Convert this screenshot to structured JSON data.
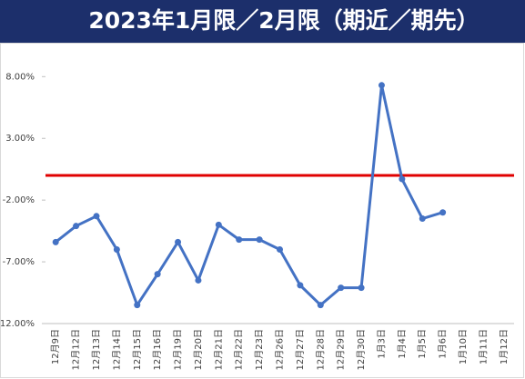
{
  "chart_data": {
    "type": "line",
    "title": "2023年1月限／2月限（期近／期先）",
    "categories": [
      "12月9日",
      "12月12日",
      "12月13日",
      "12月14日",
      "12月15日",
      "12月16日",
      "12月19日",
      "12月20日",
      "12月21日",
      "12月22日",
      "12月23日",
      "12月26日",
      "12月27日",
      "12月28日",
      "12月29日",
      "12月30日",
      "1月3日",
      "1月4日",
      "1月5日",
      "1月6日",
      "1月10日",
      "1月11日",
      "1月12日"
    ],
    "series": [
      {
        "color": "#4472c4",
        "values": [
          -5.4,
          -4.1,
          -3.3,
          -6.0,
          -10.5,
          -8.0,
          -5.4,
          -8.5,
          -4.0,
          -5.2,
          -5.2,
          -6.0,
          -8.9,
          -10.5,
          -9.1,
          -9.1,
          7.3,
          -0.3,
          -3.5,
          -3.0,
          null,
          null,
          null
        ]
      }
    ],
    "reference_line": {
      "value": 0,
      "color": "#e00000"
    },
    "ylim": [
      -12,
      9.2
    ],
    "yticks": [
      {
        "value": 8,
        "label": "8.00%"
      },
      {
        "value": 3,
        "label": "3.00%"
      },
      {
        "value": -2,
        "label": "-2.00%"
      },
      {
        "value": -7,
        "label": "-7.00%"
      },
      {
        "value": -12,
        "label": "-12.00%"
      }
    ]
  }
}
